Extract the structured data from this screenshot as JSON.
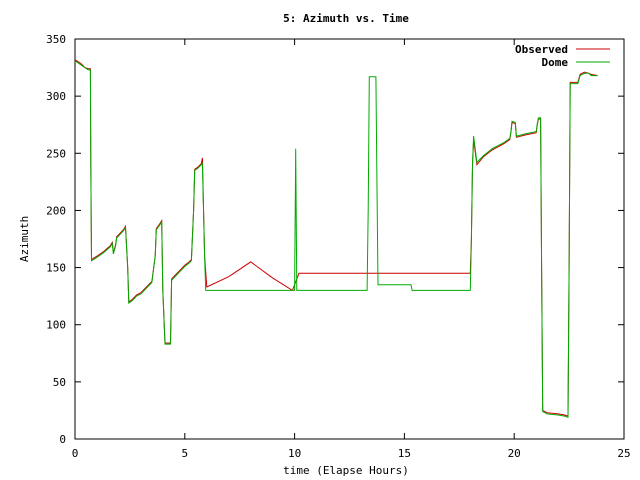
{
  "chart_data": {
    "type": "line",
    "title": "5: Azimuth vs. Time",
    "xlabel": "time (Elapse Hours)",
    "ylabel": "Azimuth",
    "xlim": [
      0,
      25
    ],
    "ylim": [
      0,
      350
    ],
    "xticks": [
      0,
      5,
      10,
      15,
      20,
      25
    ],
    "yticks": [
      0,
      50,
      100,
      150,
      200,
      250,
      300,
      350
    ],
    "grid": false,
    "legend_position": "top-right",
    "series": [
      {
        "name": "Observed",
        "color": "#cc0000",
        "points": [
          [
            0.0,
            332
          ],
          [
            0.3,
            328
          ],
          [
            0.45,
            325
          ],
          [
            0.6,
            324
          ],
          [
            0.7,
            324
          ],
          [
            0.72,
            240
          ],
          [
            0.75,
            157
          ],
          [
            1.0,
            160
          ],
          [
            1.3,
            164
          ],
          [
            1.6,
            169
          ],
          [
            1.7,
            172
          ],
          [
            1.75,
            163
          ],
          [
            1.85,
            170
          ],
          [
            1.9,
            177
          ],
          [
            2.2,
            183
          ],
          [
            2.3,
            186
          ],
          [
            2.4,
            150
          ],
          [
            2.45,
            120
          ],
          [
            2.6,
            122
          ],
          [
            2.8,
            126
          ],
          [
            3.0,
            128
          ],
          [
            3.3,
            134
          ],
          [
            3.5,
            138
          ],
          [
            3.65,
            160
          ],
          [
            3.7,
            184
          ],
          [
            3.85,
            188
          ],
          [
            3.95,
            191
          ],
          [
            4.0,
            130
          ],
          [
            4.1,
            84
          ],
          [
            4.2,
            84
          ],
          [
            4.35,
            84
          ],
          [
            4.4,
            140
          ],
          [
            4.6,
            144
          ],
          [
            4.8,
            148
          ],
          [
            5.0,
            152
          ],
          [
            5.2,
            155
          ],
          [
            5.3,
            157
          ],
          [
            5.4,
            200
          ],
          [
            5.45,
            236
          ],
          [
            5.6,
            238
          ],
          [
            5.75,
            241
          ],
          [
            5.8,
            246
          ],
          [
            5.9,
            160
          ],
          [
            6.0,
            133
          ],
          [
            7.0,
            142
          ],
          [
            8.0,
            155
          ],
          [
            9.0,
            141
          ],
          [
            9.9,
            130
          ],
          [
            10.1,
            140
          ],
          [
            10.2,
            145
          ],
          [
            13.0,
            145
          ],
          [
            15.0,
            145
          ],
          [
            18.0,
            145
          ],
          [
            18.05,
            175
          ],
          [
            18.1,
            240
          ],
          [
            18.15,
            262
          ],
          [
            18.3,
            240
          ],
          [
            18.6,
            247
          ],
          [
            19.0,
            253
          ],
          [
            19.5,
            258
          ],
          [
            19.8,
            262
          ],
          [
            19.85,
            268
          ],
          [
            19.9,
            277
          ],
          [
            20.05,
            276
          ],
          [
            20.1,
            264
          ],
          [
            20.5,
            266
          ],
          [
            21.0,
            268
          ],
          [
            21.05,
            275
          ],
          [
            21.1,
            280
          ],
          [
            21.2,
            280
          ],
          [
            21.25,
            150
          ],
          [
            21.3,
            25
          ],
          [
            21.5,
            23
          ],
          [
            22.0,
            22
          ],
          [
            22.3,
            21
          ],
          [
            22.45,
            20
          ],
          [
            22.5,
            150
          ],
          [
            22.55,
            312
          ],
          [
            22.8,
            312
          ],
          [
            22.9,
            312
          ],
          [
            23.0,
            319
          ],
          [
            23.2,
            321
          ],
          [
            23.4,
            320
          ],
          [
            23.5,
            319
          ],
          [
            23.8,
            318
          ]
        ]
      },
      {
        "name": "Dome",
        "color": "#00aa00",
        "points": [
          [
            0.0,
            331
          ],
          [
            0.3,
            327
          ],
          [
            0.45,
            325
          ],
          [
            0.6,
            323
          ],
          [
            0.7,
            323
          ],
          [
            0.72,
            240
          ],
          [
            0.75,
            156
          ],
          [
            1.0,
            159
          ],
          [
            1.3,
            163
          ],
          [
            1.6,
            168
          ],
          [
            1.7,
            171
          ],
          [
            1.75,
            162
          ],
          [
            1.85,
            169
          ],
          [
            1.9,
            176
          ],
          [
            2.2,
            182
          ],
          [
            2.3,
            185
          ],
          [
            2.4,
            150
          ],
          [
            2.45,
            119
          ],
          [
            2.6,
            121
          ],
          [
            2.8,
            125
          ],
          [
            3.0,
            127
          ],
          [
            3.3,
            133
          ],
          [
            3.5,
            137
          ],
          [
            3.65,
            160
          ],
          [
            3.7,
            183
          ],
          [
            3.85,
            187
          ],
          [
            3.95,
            190
          ],
          [
            4.0,
            130
          ],
          [
            4.1,
            83
          ],
          [
            4.2,
            83
          ],
          [
            4.35,
            83
          ],
          [
            4.4,
            139
          ],
          [
            4.6,
            143
          ],
          [
            4.8,
            147
          ],
          [
            5.0,
            151
          ],
          [
            5.2,
            154
          ],
          [
            5.3,
            156
          ],
          [
            5.4,
            200
          ],
          [
            5.45,
            235
          ],
          [
            5.6,
            237
          ],
          [
            5.75,
            240
          ],
          [
            5.8,
            241
          ],
          [
            5.9,
            160
          ],
          [
            5.95,
            130
          ],
          [
            6.0,
            130
          ],
          [
            8.0,
            130
          ],
          [
            9.9,
            130
          ],
          [
            10.0,
            130
          ],
          [
            10.05,
            254
          ],
          [
            10.1,
            130
          ],
          [
            12.0,
            130
          ],
          [
            13.3,
            130
          ],
          [
            13.35,
            200
          ],
          [
            13.4,
            317
          ],
          [
            13.7,
            317
          ],
          [
            13.75,
            220
          ],
          [
            13.8,
            135
          ],
          [
            15.0,
            135
          ],
          [
            15.3,
            135
          ],
          [
            15.35,
            130
          ],
          [
            18.0,
            130
          ],
          [
            18.05,
            175
          ],
          [
            18.1,
            240
          ],
          [
            18.15,
            265
          ],
          [
            18.3,
            242
          ],
          [
            18.6,
            248
          ],
          [
            19.0,
            254
          ],
          [
            19.5,
            259
          ],
          [
            19.8,
            263
          ],
          [
            19.85,
            269
          ],
          [
            19.9,
            278
          ],
          [
            20.05,
            277
          ],
          [
            20.1,
            265
          ],
          [
            20.5,
            267
          ],
          [
            21.0,
            269
          ],
          [
            21.05,
            276
          ],
          [
            21.1,
            281
          ],
          [
            21.2,
            281
          ],
          [
            21.25,
            150
          ],
          [
            21.3,
            24
          ],
          [
            21.5,
            22
          ],
          [
            22.0,
            21
          ],
          [
            22.3,
            20
          ],
          [
            22.45,
            19
          ],
          [
            22.5,
            150
          ],
          [
            22.55,
            311
          ],
          [
            22.8,
            311
          ],
          [
            22.9,
            311
          ],
          [
            23.0,
            318
          ],
          [
            23.2,
            320
          ],
          [
            23.4,
            320
          ],
          [
            23.5,
            318
          ],
          [
            23.8,
            318
          ]
        ]
      }
    ]
  }
}
